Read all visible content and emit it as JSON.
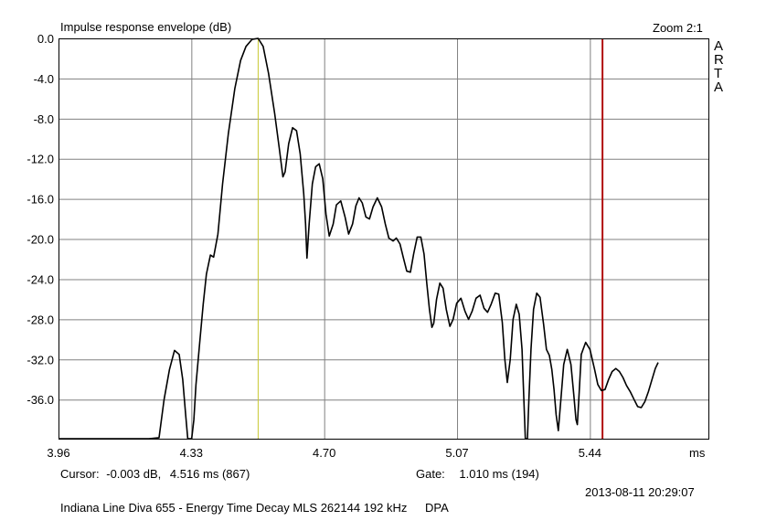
{
  "window": {
    "title": "Impulse response envelope (dB)",
    "zoom": "Zoom 2:1",
    "brand": [
      "A",
      "R",
      "T",
      "A"
    ]
  },
  "status": {
    "cursor_label": "Cursor:",
    "cursor_value": "-0.003 dB,",
    "cursor_time": "4.516 ms  (867)",
    "gate_label": "Gate:",
    "gate_value": "1.010 ms  (194)",
    "timestamp": "2013-08-11  20:29:07",
    "caption": "Indiana Line Diva 655 - Energy Time Decay MLS 262144 192 kHz",
    "caption_tag": "DPA"
  },
  "colors": {
    "curve": "#000000",
    "grid": "#808080",
    "cursor_line": "#c8c830",
    "gate_line": "#b01010"
  },
  "chart_data": {
    "type": "line",
    "title": "Impulse response envelope (dB)",
    "xlabel": "ms",
    "ylabel": "",
    "xlim": [
      3.96,
      5.77
    ],
    "ylim": [
      -39.9,
      0.0
    ],
    "x_ticks": [
      "3.96",
      "4.33",
      "4.70",
      "5.07",
      "5.44"
    ],
    "x_tick_values": [
      3.96,
      4.33,
      4.7,
      5.07,
      5.44
    ],
    "x_unit_label": "ms",
    "y_ticks": [
      "0.0",
      "-4.0",
      "-8.0",
      "-12.0",
      "-16.0",
      "-20.0",
      "-24.0",
      "-28.0",
      "-32.0",
      "-36.0"
    ],
    "y_tick_values": [
      0,
      -4,
      -8,
      -12,
      -16,
      -20,
      -24,
      -28,
      -32,
      -36
    ],
    "grid": true,
    "cursor_x": 4.516,
    "gate_x": 5.475,
    "series": [
      {
        "points": [
          [
            3.96,
            -39.9
          ],
          [
            4.082,
            -39.9
          ],
          [
            4.212,
            -39.9
          ],
          [
            4.24,
            -39.8
          ],
          [
            4.254,
            -36.0
          ],
          [
            4.269,
            -33.0
          ],
          [
            4.283,
            -31.1
          ],
          [
            4.296,
            -31.5
          ],
          [
            4.306,
            -34.0
          ],
          [
            4.314,
            -37.5
          ],
          [
            4.32,
            -39.9
          ],
          [
            4.331,
            -39.9
          ],
          [
            4.337,
            -38.0
          ],
          [
            4.343,
            -34.5
          ],
          [
            4.354,
            -30.0
          ],
          [
            4.363,
            -26.5
          ],
          [
            4.372,
            -23.5
          ],
          [
            4.383,
            -21.6
          ],
          [
            4.392,
            -21.8
          ],
          [
            4.404,
            -19.5
          ],
          [
            4.417,
            -14.5
          ],
          [
            4.433,
            -9.5
          ],
          [
            4.451,
            -5.0
          ],
          [
            4.467,
            -2.2
          ],
          [
            4.482,
            -0.8
          ],
          [
            4.499,
            -0.1
          ],
          [
            4.516,
            0.0
          ],
          [
            4.53,
            -0.8
          ],
          [
            4.545,
            -3.5
          ],
          [
            4.562,
            -7.5
          ],
          [
            4.575,
            -11.0
          ],
          [
            4.585,
            -13.8
          ],
          [
            4.591,
            -13.3
          ],
          [
            4.601,
            -10.5
          ],
          [
            4.612,
            -8.9
          ],
          [
            4.623,
            -9.2
          ],
          [
            4.633,
            -11.5
          ],
          [
            4.643,
            -15.5
          ],
          [
            4.648,
            -18.5
          ],
          [
            4.652,
            -21.9
          ],
          [
            4.658,
            -18.5
          ],
          [
            4.667,
            -14.5
          ],
          [
            4.676,
            -12.8
          ],
          [
            4.686,
            -12.5
          ],
          [
            4.696,
            -14.0
          ],
          [
            4.705,
            -17.5
          ],
          [
            4.714,
            -19.7
          ],
          [
            4.725,
            -18.5
          ],
          [
            4.734,
            -16.6
          ],
          [
            4.746,
            -16.2
          ],
          [
            4.758,
            -17.8
          ],
          [
            4.768,
            -19.5
          ],
          [
            4.779,
            -18.5
          ],
          [
            4.788,
            -16.7
          ],
          [
            4.797,
            -15.9
          ],
          [
            4.806,
            -16.4
          ],
          [
            4.816,
            -17.8
          ],
          [
            4.826,
            -18.0
          ],
          [
            4.836,
            -16.8
          ],
          [
            4.848,
            -15.9
          ],
          [
            4.86,
            -16.8
          ],
          [
            4.87,
            -18.5
          ],
          [
            4.88,
            -19.9
          ],
          [
            4.892,
            -20.2
          ],
          [
            4.901,
            -19.9
          ],
          [
            4.911,
            -20.5
          ],
          [
            4.92,
            -21.8
          ],
          [
            4.93,
            -23.2
          ],
          [
            4.94,
            -23.3
          ],
          [
            4.949,
            -21.5
          ],
          [
            4.959,
            -19.8
          ],
          [
            4.969,
            -19.8
          ],
          [
            4.978,
            -21.5
          ],
          [
            4.986,
            -24.5
          ],
          [
            4.993,
            -27.0
          ],
          [
            5.0,
            -28.8
          ],
          [
            5.005,
            -28.4
          ],
          [
            5.013,
            -26.0
          ],
          [
            5.022,
            -24.4
          ],
          [
            5.031,
            -24.9
          ],
          [
            5.04,
            -27.0
          ],
          [
            5.05,
            -28.7
          ],
          [
            5.059,
            -28.0
          ],
          [
            5.069,
            -26.4
          ],
          [
            5.081,
            -25.9
          ],
          [
            5.092,
            -27.2
          ],
          [
            5.102,
            -28.0
          ],
          [
            5.112,
            -27.2
          ],
          [
            5.123,
            -25.9
          ],
          [
            5.134,
            -25.6
          ],
          [
            5.145,
            -26.9
          ],
          [
            5.155,
            -27.3
          ],
          [
            5.165,
            -26.5
          ],
          [
            5.176,
            -25.4
          ],
          [
            5.186,
            -25.5
          ],
          [
            5.196,
            -28.3
          ],
          [
            5.203,
            -32.0
          ],
          [
            5.21,
            -34.3
          ],
          [
            5.218,
            -32.0
          ],
          [
            5.226,
            -28.0
          ],
          [
            5.235,
            -26.5
          ],
          [
            5.243,
            -27.5
          ],
          [
            5.251,
            -31.0
          ],
          [
            5.256,
            -36.0
          ],
          [
            5.26,
            -39.9
          ],
          [
            5.266,
            -39.9
          ],
          [
            5.27,
            -36.0
          ],
          [
            5.276,
            -31.0
          ],
          [
            5.283,
            -27.0
          ],
          [
            5.292,
            -25.4
          ],
          [
            5.301,
            -25.8
          ],
          [
            5.311,
            -28.5
          ],
          [
            5.319,
            -31.0
          ],
          [
            5.327,
            -31.6
          ],
          [
            5.334,
            -33.0
          ],
          [
            5.34,
            -35.0
          ],
          [
            5.346,
            -37.5
          ],
          [
            5.352,
            -39.1
          ],
          [
            5.359,
            -36.0
          ],
          [
            5.367,
            -32.5
          ],
          [
            5.377,
            -31.0
          ],
          [
            5.387,
            -32.5
          ],
          [
            5.395,
            -35.5
          ],
          [
            5.401,
            -38.0
          ],
          [
            5.405,
            -38.5
          ],
          [
            5.409,
            -36.0
          ],
          [
            5.416,
            -31.5
          ],
          [
            5.428,
            -30.3
          ],
          [
            5.44,
            -31.0
          ],
          [
            5.453,
            -33.0
          ],
          [
            5.462,
            -34.5
          ],
          [
            5.472,
            -35.1
          ],
          [
            5.482,
            -35.0
          ],
          [
            5.492,
            -34.0
          ],
          [
            5.502,
            -33.2
          ],
          [
            5.512,
            -32.9
          ],
          [
            5.522,
            -33.2
          ],
          [
            5.532,
            -33.8
          ],
          [
            5.542,
            -34.6
          ],
          [
            5.552,
            -35.2
          ],
          [
            5.563,
            -36.0
          ],
          [
            5.573,
            -36.7
          ],
          [
            5.583,
            -36.8
          ],
          [
            5.593,
            -36.2
          ],
          [
            5.603,
            -35.2
          ],
          [
            5.613,
            -34.0
          ],
          [
            5.622,
            -32.9
          ],
          [
            5.63,
            -32.3
          ]
        ]
      }
    ]
  }
}
